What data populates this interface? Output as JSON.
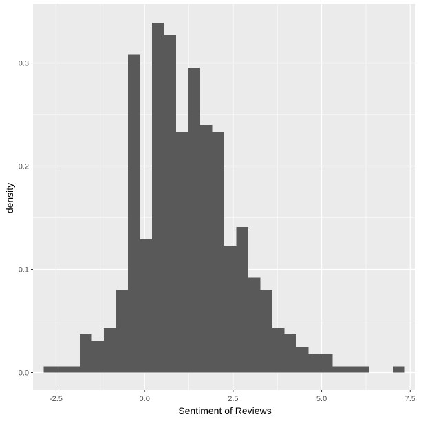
{
  "chart_data": {
    "type": "bar",
    "subtype": "histogram",
    "title": "",
    "xlabel": "Sentiment of Reviews",
    "ylabel": "density",
    "xlim": [
      -3.15,
      7.65
    ],
    "ylim": [
      -0.017,
      0.357
    ],
    "x_ticks": [
      {
        "value": -2.5,
        "label": "-2.5"
      },
      {
        "value": 0.0,
        "label": "0.0"
      },
      {
        "value": 2.5,
        "label": "2.5"
      },
      {
        "value": 5.0,
        "label": "5.0"
      },
      {
        "value": 7.5,
        "label": "7.5"
      }
    ],
    "y_ticks": [
      {
        "value": 0.0,
        "label": "0.0"
      },
      {
        "value": 0.1,
        "label": "0.1"
      },
      {
        "value": 0.2,
        "label": "0.2"
      },
      {
        "value": 0.3,
        "label": "0.3"
      }
    ],
    "bin_edges": [
      -2.85,
      -2.51,
      -2.17,
      -1.83,
      -1.49,
      -1.15,
      -0.81,
      -0.47,
      -0.13,
      0.21,
      0.55,
      0.89,
      1.23,
      1.57,
      1.91,
      2.25,
      2.59,
      2.93,
      3.27,
      3.61,
      3.95,
      4.29,
      4.63,
      4.97,
      5.31,
      5.65,
      5.99,
      6.33,
      6.67,
      7.01,
      7.35
    ],
    "values": [
      0.006,
      0.006,
      0.006,
      0.037,
      0.031,
      0.043,
      0.08,
      0.308,
      0.129,
      0.339,
      0.327,
      0.233,
      0.295,
      0.24,
      0.233,
      0.123,
      0.141,
      0.092,
      0.08,
      0.043,
      0.037,
      0.025,
      0.018,
      0.018,
      0.006,
      0.006,
      0.006,
      0.0,
      0.0,
      0.006
    ],
    "grid": true,
    "legend": "none",
    "colors": {
      "panel_background": "#ebebeb",
      "grid_major": "#ffffff",
      "bar_fill": "#595959"
    }
  }
}
